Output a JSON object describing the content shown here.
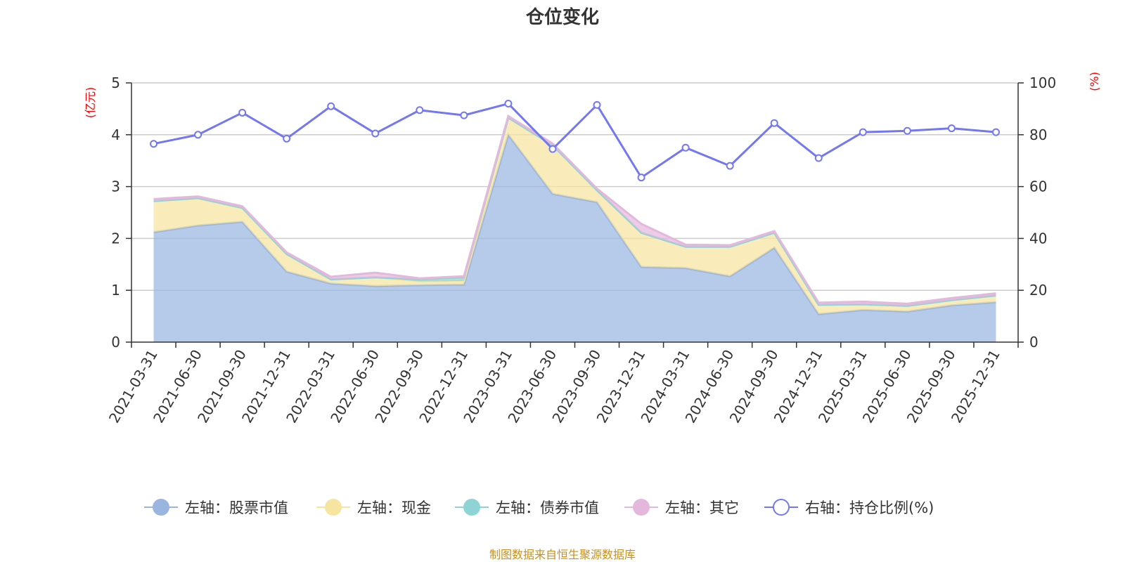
{
  "title": "仓位变化",
  "source": "制图数据来自恒生聚源数据库",
  "chart_data": {
    "type": "area",
    "title": "仓位变化",
    "y_left_unit": "(亿元)",
    "y_right_unit": "(%)",
    "y_left_range": [
      0,
      5
    ],
    "y_left_ticks": [
      "0",
      "1",
      "2",
      "3",
      "4",
      "5"
    ],
    "y_right_range": [
      0,
      100
    ],
    "y_right_ticks": [
      "0",
      "20",
      "40",
      "60",
      "80",
      "100"
    ],
    "grid": true,
    "legend_position": "bottom",
    "categories": [
      "2021-03-31",
      "2021-06-30",
      "2021-09-30",
      "2021-12-31",
      "2022-03-31",
      "2022-06-30",
      "2022-09-30",
      "2022-12-31",
      "2023-03-31",
      "2023-06-30",
      "2023-09-30",
      "2023-12-31",
      "2024-03-31",
      "2024-06-30",
      "2024-09-30",
      "2024-12-31",
      "2025-03-31",
      "2025-06-30",
      "2025-09-30",
      "2025-12-31"
    ],
    "series": [
      {
        "name": "左轴：股票市值",
        "axis": "left",
        "kind": "stacked-area",
        "color": "#9ab5e0",
        "values": [
          2.12,
          2.25,
          2.32,
          1.36,
          1.13,
          1.08,
          1.1,
          1.11,
          4.0,
          2.86,
          2.7,
          1.45,
          1.43,
          1.27,
          1.82,
          0.54,
          0.62,
          0.59,
          0.71,
          0.77
        ]
      },
      {
        "name": "左轴：现金",
        "axis": "left",
        "kind": "stacked-area",
        "color": "#f6e4a0",
        "values": [
          0.6,
          0.52,
          0.27,
          0.34,
          0.08,
          0.17,
          0.07,
          0.07,
          0.33,
          0.94,
          0.23,
          0.66,
          0.41,
          0.57,
          0.29,
          0.18,
          0.11,
          0.11,
          0.1,
          0.13
        ]
      },
      {
        "name": "左轴：债券市值",
        "axis": "left",
        "kind": "stacked-area",
        "color": "#8fd4d4",
        "values": [
          0,
          0.01,
          0,
          0,
          0,
          0,
          0.04,
          0.07,
          0,
          0,
          0,
          0,
          0,
          0,
          0,
          0,
          0,
          0,
          0,
          0
        ]
      },
      {
        "name": "左轴：其它",
        "axis": "left",
        "kind": "stacked-area",
        "color": "#e4b8dc",
        "values": [
          0.04,
          0.03,
          0.03,
          0.03,
          0.05,
          0.09,
          0.02,
          0.02,
          0.03,
          0.03,
          0.03,
          0.17,
          0.04,
          0.03,
          0.03,
          0.04,
          0.05,
          0.04,
          0.04,
          0.04
        ]
      },
      {
        "name": "右轴：持仓比例(%)",
        "axis": "right",
        "kind": "line",
        "color": "#7478f0",
        "values": [
          76.5,
          80,
          88.5,
          78.5,
          91,
          80.5,
          89.5,
          87.5,
          92,
          74.5,
          91.5,
          63.5,
          75,
          68,
          84.5,
          71,
          81,
          81.5,
          82.5,
          81
        ]
      }
    ]
  }
}
